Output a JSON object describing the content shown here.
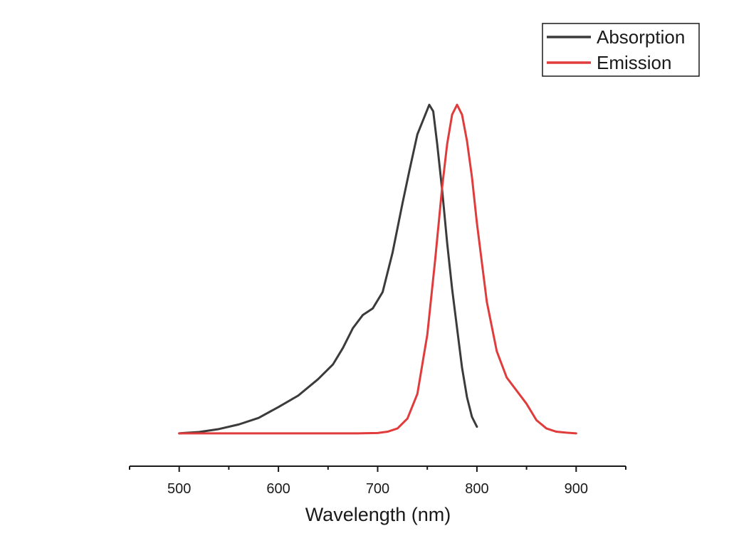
{
  "chart_data": {
    "type": "line",
    "xlabel": "Wavelength (nm)",
    "ylabel": "",
    "title": "",
    "xlim": [
      450,
      950
    ],
    "ylim": [
      -0.1,
      1.02
    ],
    "xticks": [
      500,
      600,
      700,
      800,
      900
    ],
    "x_minor_ticks": [
      450,
      550,
      650,
      750,
      850,
      950
    ],
    "grid": false,
    "y_axis_visible": false,
    "legend": {
      "position": "top-right",
      "entries": [
        "Absorption",
        "Emission"
      ]
    },
    "series": [
      {
        "name": "Absorption",
        "color": "#3b3b3b",
        "x": [
          500,
          520,
          540,
          560,
          580,
          600,
          620,
          640,
          655,
          665,
          675,
          685,
          695,
          705,
          715,
          725,
          732,
          740,
          748,
          752,
          756,
          760,
          765,
          770,
          775,
          780,
          785,
          790,
          795,
          800
        ],
        "y": [
          0.0,
          0.004,
          0.013,
          0.027,
          0.047,
          0.08,
          0.115,
          0.165,
          0.21,
          0.26,
          0.32,
          0.36,
          0.38,
          0.43,
          0.55,
          0.7,
          0.8,
          0.91,
          0.97,
          1.0,
          0.98,
          0.88,
          0.74,
          0.58,
          0.44,
          0.32,
          0.2,
          0.11,
          0.05,
          0.02
        ]
      },
      {
        "name": "Emission",
        "color": "#e03c3c",
        "x": [
          500,
          680,
          700,
          710,
          720,
          730,
          740,
          750,
          758,
          765,
          770,
          775,
          780,
          785,
          790,
          795,
          800,
          810,
          820,
          830,
          840,
          850,
          860,
          870,
          880,
          890,
          900
        ],
        "y": [
          0.0,
          0.0,
          0.001,
          0.005,
          0.015,
          0.045,
          0.12,
          0.3,
          0.53,
          0.75,
          0.88,
          0.97,
          1.0,
          0.97,
          0.89,
          0.78,
          0.64,
          0.4,
          0.25,
          0.17,
          0.13,
          0.09,
          0.04,
          0.015,
          0.005,
          0.002,
          0.0
        ]
      }
    ]
  }
}
